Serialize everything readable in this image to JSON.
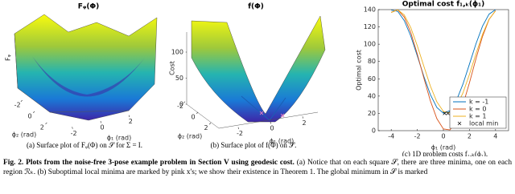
{
  "chart_data": [
    {
      "type": "surface",
      "title": "Fᵩ(Φ)",
      "zlabel": "Fᵩ",
      "xlabel": "ϕ₁ (rad)",
      "ylabel": "ϕ₂ (rad)",
      "xlim": [
        -3,
        3
      ],
      "ylim": [
        -3,
        3
      ],
      "xticks": [
        -2,
        0,
        2
      ],
      "yticks": [
        -2,
        0,
        2
      ],
      "caption": "(a) Surface plot of Fᵩ(Φ) on 𝒮 for Σ = I."
    },
    {
      "type": "surface",
      "title": "f(Φ)",
      "zlabel": "Cost",
      "xlabel": "ϕ₁ (rad)",
      "ylabel": "ϕ₂ (rad)",
      "xlim": [
        -3,
        3
      ],
      "ylim": [
        -3,
        3
      ],
      "zlim": [
        0,
        140
      ],
      "xticks": [
        -2,
        0,
        2
      ],
      "yticks": [
        -2,
        0,
        2
      ],
      "zticks": [
        0,
        50,
        100
      ],
      "caption": "(b) Surface plot of f(Φ) on 𝒮."
    },
    {
      "type": "line",
      "title": "Optimal cost f₁,ₖ(ϕ₁)",
      "xlabel": "ϕ₁ (rad)",
      "ylabel": "Optimal cost",
      "xlim": [
        -5,
        5
      ],
      "ylim": [
        0,
        140
      ],
      "xticks": [
        -4,
        -2,
        0,
        2,
        4
      ],
      "yticks": [
        0,
        20,
        40,
        60,
        80,
        100,
        120,
        140
      ],
      "legend": "lower right",
      "x": [
        -4,
        -3.5,
        -3,
        -2.5,
        -2,
        -1.5,
        -1,
        -0.5,
        0,
        0.5,
        1,
        1.5,
        2,
        2.5,
        3,
        3.5,
        4
      ],
      "series": [
        {
          "name": "k = -1",
          "color": "#0072bd",
          "values": [
            139.5,
            138.0,
            127.3,
            109.3,
            86.5,
            62.8,
            41.8,
            26.8,
            20.2,
            23.1,
            34.9,
            53.8,
            77.0,
            100.5,
            120.8,
            134.7,
            140.0
          ]
        },
        {
          "name": "k = 0",
          "color": "#d95319",
          "values": [
            136.9,
            139.7,
            131.4,
            113.4,
            88.6,
            60.9,
            34.6,
            13.9,
            2.0,
            0.9,
            10.7,
            29.8,
            55.4,
            83.2,
            108.9,
            128.5,
            138.8
          ]
        },
        {
          "name": "k = 1",
          "color": "#edb120",
          "values": [
            136.6,
            139.9,
            133.8,
            119.1,
            98.2,
            74.6,
            51.7,
            33.3,
            22.3,
            20.4,
            27.9,
            43.6,
            65.1,
            88.9,
            111.3,
            128.8,
            138.5
          ]
        }
      ],
      "points": {
        "name": "local min",
        "color": "#000000",
        "x": [
          0.1,
          0.35
        ],
        "values": [
          20,
          20
        ]
      },
      "caption": "(c) 1D problem costs f₁,ₖ(ϕ₁)."
    }
  ],
  "figure_caption": {
    "label": "Fig. 2.",
    "title": "Plots from the noise-free 3-pose example problem in Section V using geodesic cost.",
    "text": "(a) Notice that on each square 𝒮, there are three minima, one on each region ℛₖ. (b) Suboptimal local minima are marked by pink x's; we show their existence in Theorem 1. The global minimum in 𝒮 is marked"
  }
}
